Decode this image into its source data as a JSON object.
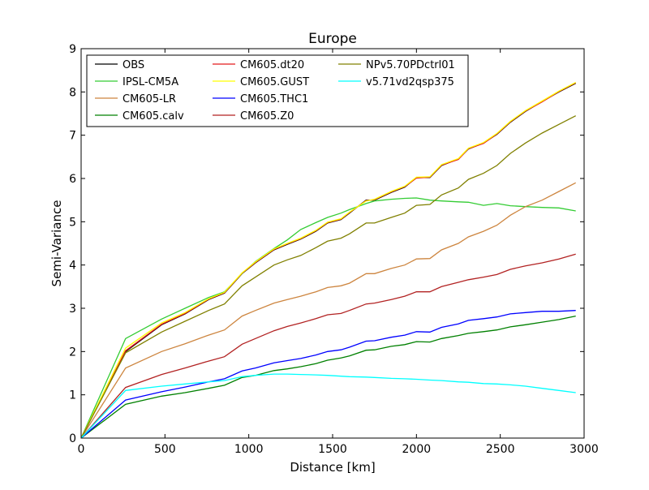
{
  "chart_data": {
    "type": "line",
    "title": "Europe",
    "xlabel": "Distance [km]",
    "ylabel": "Semi-Variance",
    "xlim": [
      0,
      3000
    ],
    "ylim": [
      0,
      9
    ],
    "xticks": [
      0,
      500,
      1000,
      1500,
      2000,
      2500,
      3000
    ],
    "xtick_labels": [
      "0",
      "500",
      "1000",
      "1500",
      "2000",
      "2500",
      "3000"
    ],
    "yticks": [
      0,
      1,
      2,
      3,
      4,
      5,
      6,
      7,
      8,
      9
    ],
    "ytick_labels": [
      "0",
      "1",
      "2",
      "3",
      "4",
      "5",
      "6",
      "7",
      "8",
      "9"
    ],
    "grid": false,
    "legend_position": "top-left",
    "legend_columns": 3,
    "series": [
      {
        "name": "OBS",
        "color": "#000000",
        "x": [
          0,
          265,
          480,
          620,
          760,
          855,
          960,
          1040,
          1150,
          1230,
          1310,
          1400,
          1470,
          1550,
          1600,
          1700,
          1750,
          1850,
          1930,
          2000,
          2080,
          2150,
          2250,
          2310,
          2400,
          2480,
          2560,
          2650,
          2750,
          2850,
          2950
        ],
        "y": [
          0,
          2.0,
          2.62,
          2.87,
          3.2,
          3.35,
          3.8,
          4.05,
          4.35,
          4.48,
          4.6,
          4.78,
          4.97,
          5.05,
          5.2,
          5.5,
          5.5,
          5.68,
          5.8,
          6.02,
          6.02,
          6.3,
          6.45,
          6.68,
          6.82,
          7.02,
          7.3,
          7.55,
          7.78,
          8.0,
          8.2
        ]
      },
      {
        "name": "IPSL-CM5A",
        "color": "#33cc33",
        "x": [
          0,
          265,
          480,
          620,
          760,
          855,
          960,
          1040,
          1150,
          1230,
          1310,
          1400,
          1470,
          1550,
          1600,
          1700,
          1750,
          1850,
          1930,
          2000,
          2080,
          2150,
          2250,
          2310,
          2400,
          2480,
          2560,
          2650,
          2750,
          2850,
          2950
        ],
        "y": [
          0,
          2.3,
          2.75,
          3.0,
          3.25,
          3.38,
          3.8,
          4.08,
          4.38,
          4.58,
          4.82,
          4.98,
          5.1,
          5.2,
          5.28,
          5.42,
          5.48,
          5.52,
          5.54,
          5.55,
          5.5,
          5.48,
          5.46,
          5.45,
          5.38,
          5.42,
          5.37,
          5.35,
          5.33,
          5.32,
          5.25
        ]
      },
      {
        "name": "CM605-LR",
        "color": "#cd853f",
        "x": [
          0,
          265,
          480,
          620,
          760,
          855,
          960,
          1040,
          1150,
          1230,
          1310,
          1400,
          1470,
          1550,
          1600,
          1700,
          1750,
          1850,
          1930,
          2000,
          2080,
          2150,
          2250,
          2310,
          2400,
          2480,
          2560,
          2650,
          2750,
          2850,
          2950
        ],
        "y": [
          0,
          1.62,
          2.0,
          2.18,
          2.38,
          2.5,
          2.82,
          2.95,
          3.12,
          3.2,
          3.28,
          3.38,
          3.48,
          3.52,
          3.58,
          3.8,
          3.8,
          3.92,
          4.0,
          4.14,
          4.15,
          4.35,
          4.5,
          4.65,
          4.78,
          4.92,
          5.15,
          5.35,
          5.5,
          5.7,
          5.9
        ]
      },
      {
        "name": "CM605.calv",
        "color": "#008000",
        "x": [
          0,
          265,
          480,
          620,
          760,
          855,
          960,
          1040,
          1150,
          1230,
          1310,
          1400,
          1470,
          1550,
          1600,
          1700,
          1750,
          1850,
          1930,
          2000,
          2080,
          2150,
          2250,
          2310,
          2400,
          2480,
          2560,
          2650,
          2750,
          2850,
          2950
        ],
        "y": [
          0,
          0.78,
          0.97,
          1.05,
          1.15,
          1.22,
          1.4,
          1.45,
          1.56,
          1.6,
          1.65,
          1.72,
          1.8,
          1.85,
          1.9,
          2.03,
          2.04,
          2.12,
          2.16,
          2.23,
          2.22,
          2.3,
          2.37,
          2.42,
          2.46,
          2.5,
          2.57,
          2.62,
          2.68,
          2.74,
          2.82
        ]
      },
      {
        "name": "CM605.dt20",
        "color": "#e41a1c",
        "x": [
          0,
          265,
          480,
          620,
          760,
          855,
          960,
          1040,
          1150,
          1230,
          1310,
          1400,
          1470,
          1550,
          1600,
          1700,
          1750,
          1850,
          1930,
          2000,
          2080,
          2150,
          2250,
          2310,
          2400,
          2480,
          2560,
          2650,
          2750,
          2850,
          2950
        ],
        "y": [
          0,
          2.02,
          2.63,
          2.88,
          3.21,
          3.36,
          3.81,
          4.06,
          4.36,
          4.49,
          4.61,
          4.79,
          4.98,
          5.06,
          5.21,
          5.49,
          5.51,
          5.69,
          5.81,
          6.01,
          6.03,
          6.31,
          6.44,
          6.69,
          6.81,
          7.03,
          7.31,
          7.56,
          7.77,
          8.01,
          8.21
        ]
      },
      {
        "name": "CM605.GUST",
        "color": "#ffff00",
        "x": [
          0,
          265,
          480,
          620,
          760,
          855,
          960,
          1040,
          1150,
          1230,
          1310,
          1400,
          1470,
          1550,
          1600,
          1700,
          1750,
          1850,
          1930,
          2000,
          2080,
          2150,
          2250,
          2310,
          2400,
          2480,
          2560,
          2650,
          2750,
          2850,
          2950
        ],
        "y": [
          0,
          2.08,
          2.66,
          2.9,
          3.22,
          3.37,
          3.82,
          4.07,
          4.37,
          4.5,
          4.62,
          4.8,
          4.99,
          5.07,
          5.22,
          5.48,
          5.52,
          5.7,
          5.82,
          6.03,
          6.04,
          6.32,
          6.46,
          6.7,
          6.83,
          7.04,
          7.32,
          7.57,
          7.79,
          8.02,
          8.22
        ]
      },
      {
        "name": "CM605.THC1",
        "color": "#0000ff",
        "x": [
          0,
          265,
          480,
          620,
          760,
          855,
          960,
          1040,
          1150,
          1230,
          1310,
          1400,
          1470,
          1550,
          1600,
          1700,
          1750,
          1850,
          1930,
          2000,
          2080,
          2150,
          2250,
          2310,
          2400,
          2480,
          2560,
          2650,
          2750,
          2850,
          2950
        ],
        "y": [
          0,
          0.88,
          1.07,
          1.18,
          1.3,
          1.37,
          1.55,
          1.62,
          1.74,
          1.79,
          1.84,
          1.92,
          2.0,
          2.04,
          2.1,
          2.24,
          2.25,
          2.33,
          2.38,
          2.46,
          2.45,
          2.56,
          2.64,
          2.72,
          2.76,
          2.8,
          2.87,
          2.9,
          2.93,
          2.93,
          2.95
        ]
      },
      {
        "name": "CM605.Z0",
        "color": "#b22222",
        "x": [
          0,
          265,
          480,
          620,
          760,
          855,
          960,
          1040,
          1150,
          1230,
          1310,
          1400,
          1470,
          1550,
          1600,
          1700,
          1750,
          1850,
          1930,
          2000,
          2080,
          2150,
          2250,
          2310,
          2400,
          2480,
          2560,
          2650,
          2750,
          2850,
          2950
        ],
        "y": [
          0,
          1.17,
          1.47,
          1.62,
          1.78,
          1.88,
          2.17,
          2.3,
          2.48,
          2.58,
          2.66,
          2.76,
          2.85,
          2.88,
          2.95,
          3.1,
          3.12,
          3.2,
          3.28,
          3.38,
          3.38,
          3.5,
          3.6,
          3.66,
          3.72,
          3.78,
          3.9,
          3.98,
          4.05,
          4.14,
          4.25
        ]
      },
      {
        "name": "NPv5.70PDctrl01",
        "color": "#808000",
        "x": [
          0,
          265,
          480,
          620,
          760,
          855,
          960,
          1040,
          1150,
          1230,
          1310,
          1400,
          1470,
          1550,
          1600,
          1700,
          1750,
          1850,
          1930,
          2000,
          2080,
          2150,
          2250,
          2310,
          2400,
          2480,
          2560,
          2650,
          2750,
          2850,
          2950
        ],
        "y": [
          0,
          1.97,
          2.45,
          2.7,
          2.95,
          3.1,
          3.52,
          3.72,
          4.0,
          4.12,
          4.22,
          4.4,
          4.55,
          4.62,
          4.72,
          4.97,
          4.97,
          5.1,
          5.2,
          5.38,
          5.4,
          5.62,
          5.78,
          5.98,
          6.12,
          6.3,
          6.58,
          6.82,
          7.05,
          7.25,
          7.45
        ]
      },
      {
        "name": "v5.71vd2qsp375",
        "color": "#00ffff",
        "x": [
          0,
          265,
          480,
          620,
          760,
          855,
          960,
          1040,
          1150,
          1230,
          1310,
          1400,
          1470,
          1550,
          1600,
          1700,
          1750,
          1850,
          1930,
          2000,
          2080,
          2150,
          2250,
          2310,
          2400,
          2480,
          2560,
          2650,
          2750,
          2850,
          2950
        ],
        "y": [
          0,
          1.1,
          1.2,
          1.25,
          1.3,
          1.33,
          1.42,
          1.45,
          1.48,
          1.48,
          1.47,
          1.46,
          1.45,
          1.43,
          1.42,
          1.41,
          1.4,
          1.38,
          1.37,
          1.36,
          1.34,
          1.33,
          1.3,
          1.29,
          1.26,
          1.25,
          1.23,
          1.2,
          1.15,
          1.1,
          1.05
        ]
      }
    ]
  }
}
